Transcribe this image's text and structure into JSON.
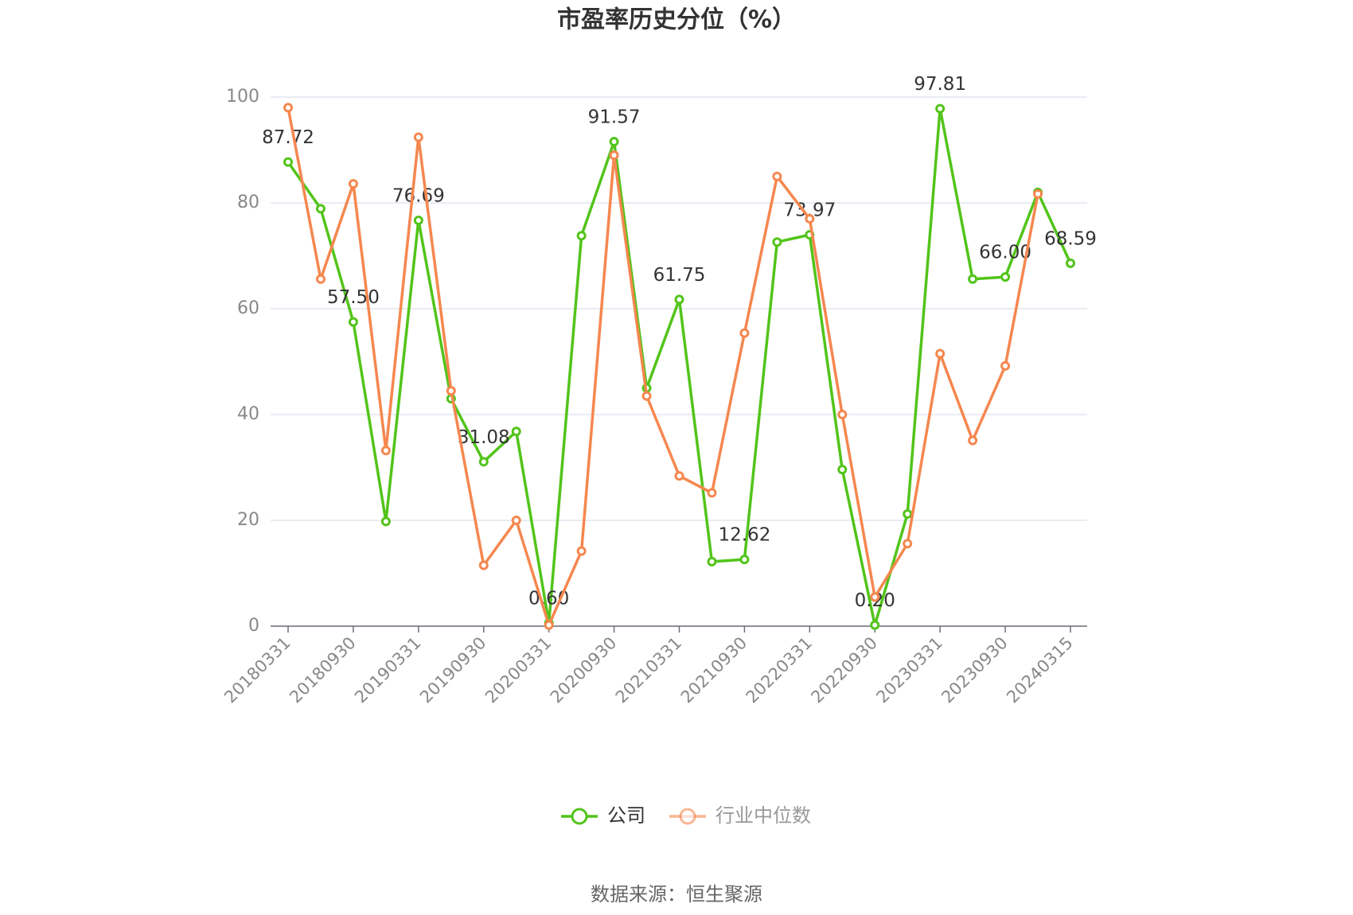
{
  "chart_data": {
    "type": "line",
    "title": "市盈率历史分位（%）",
    "source": "数据来源：恒生聚源",
    "categories": [
      "20180331",
      null,
      "20180930",
      null,
      "20190331",
      null,
      "20190930",
      null,
      "20200331",
      null,
      "20200930",
      null,
      "20210331",
      null,
      "20210930",
      null,
      "20220331",
      null,
      "20220930",
      null,
      "20230331",
      null,
      "20230930",
      null,
      "20240315"
    ],
    "series": [
      {
        "name": "公司",
        "color": "#52c41a",
        "values": [
          87.72,
          78.9,
          57.5,
          19.8,
          76.69,
          43,
          31.08,
          36.8,
          0.6,
          73.8,
          91.57,
          45,
          61.75,
          12.2,
          12.62,
          72.6,
          73.97,
          29.6,
          0.2,
          21.2,
          97.81,
          65.6,
          66,
          82,
          68.59
        ],
        "value_labels": [
          "87.72",
          null,
          "57.50",
          null,
          "76.69",
          null,
          "31.08",
          null,
          "0.60",
          null,
          "91.57",
          null,
          "61.75",
          null,
          "12.62",
          null,
          "73.97",
          null,
          "0.20",
          null,
          "97.81",
          null,
          "66.00",
          null,
          "68.59"
        ]
      },
      {
        "name": "行业中位数",
        "color": "#f5874f",
        "values": [
          98,
          65.6,
          83.6,
          33.2,
          92.4,
          44.5,
          11.5,
          20,
          0.2,
          14.2,
          89,
          43.5,
          28.4,
          25.2,
          55.4,
          85,
          77,
          40,
          5.5,
          15.6,
          51.5,
          35.1,
          49.2,
          81.7,
          null
        ]
      }
    ],
    "ylim": [
      0,
      100
    ],
    "yticks": [
      0,
      20,
      40,
      60,
      80,
      100
    ],
    "grid": true
  }
}
